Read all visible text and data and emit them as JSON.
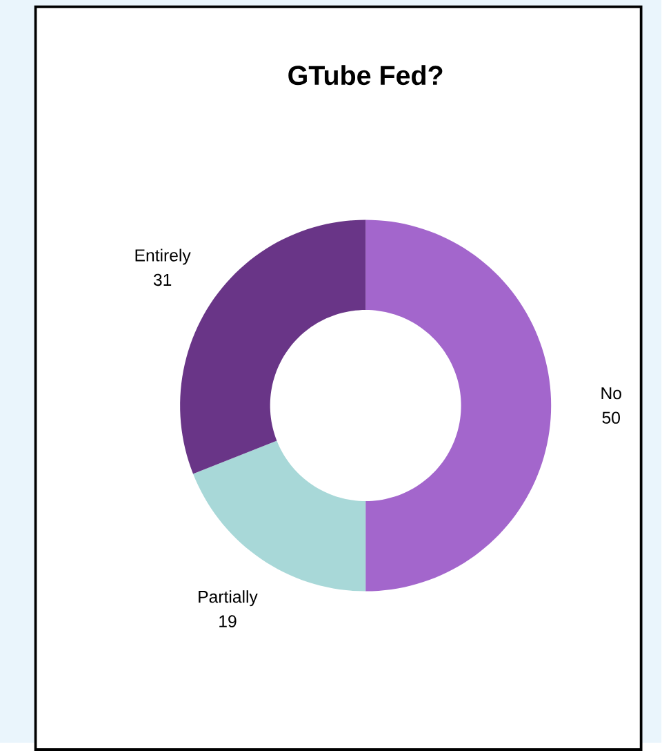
{
  "chart_data": {
    "type": "donut",
    "title": "GTube Fed?",
    "categories": [
      "No",
      "Partially",
      "Entirely"
    ],
    "values": [
      50,
      19,
      31
    ],
    "colors": [
      "#a366cc",
      "#a8d8d8",
      "#693587"
    ],
    "data_labels": true
  }
}
